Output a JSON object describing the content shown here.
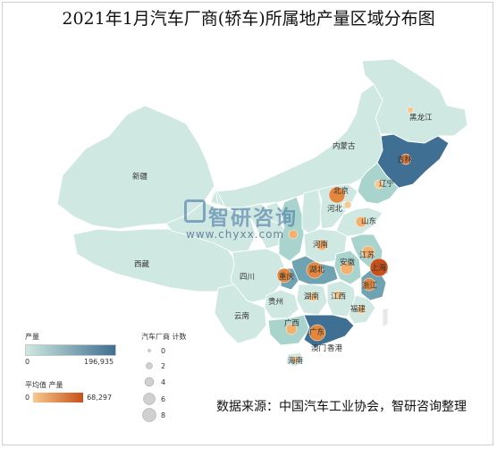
{
  "title": "2021年1月汽车厂商(轿车)所属地产量区域分布图",
  "source": "数据来源：中国汽车工业协会，智研咨询整理",
  "watermark": {
    "brand": "智研咨询",
    "url": "www.chyxx.com"
  },
  "legends": {
    "production": {
      "title": "产量",
      "min": "0",
      "max": "196,935",
      "color_low": "#cfe8e1",
      "color_high": "#3f6f92"
    },
    "avg_production": {
      "title": "平均值 产量",
      "min": "0",
      "max": "68,297",
      "color_low": "#f6c98e",
      "color_high": "#c8501a"
    },
    "count": {
      "title": "汽车厂商 计数",
      "values": [
        "0",
        "2",
        "4",
        "6",
        "8"
      ]
    }
  },
  "province_labels": [
    {
      "id": "heilongjiang",
      "text": "黑龙江"
    },
    {
      "id": "neimenggu",
      "text": "内蒙古"
    },
    {
      "id": "jilin",
      "text": "吉林"
    },
    {
      "id": "liaoning",
      "text": "辽宁"
    },
    {
      "id": "xinjiang",
      "text": "新疆"
    },
    {
      "id": "beijing",
      "text": "北京"
    },
    {
      "id": "hebei",
      "text": "河北"
    },
    {
      "id": "shandong",
      "text": "山东"
    },
    {
      "id": "henan",
      "text": "河南"
    },
    {
      "id": "jiangsu",
      "text": "江苏"
    },
    {
      "id": "anhui",
      "text": "安徽"
    },
    {
      "id": "shanghai",
      "text": "上海"
    },
    {
      "id": "xizang",
      "text": "西藏"
    },
    {
      "id": "sichuan",
      "text": "四川"
    },
    {
      "id": "hubei",
      "text": "湖北"
    },
    {
      "id": "zhejiang",
      "text": "浙江"
    },
    {
      "id": "chongqing",
      "text": "重庆"
    },
    {
      "id": "hunan",
      "text": "湖南"
    },
    {
      "id": "jiangxi",
      "text": "江西"
    },
    {
      "id": "guizhou",
      "text": "贵州"
    },
    {
      "id": "fujian",
      "text": "福建"
    },
    {
      "id": "yunnan",
      "text": "云南"
    },
    {
      "id": "guangxi",
      "text": "广西"
    },
    {
      "id": "guangdong",
      "text": "广东"
    },
    {
      "id": "aomen",
      "text": "澳门"
    },
    {
      "id": "xianggang",
      "text": "香港"
    },
    {
      "id": "hainan",
      "text": "海南"
    }
  ]
}
